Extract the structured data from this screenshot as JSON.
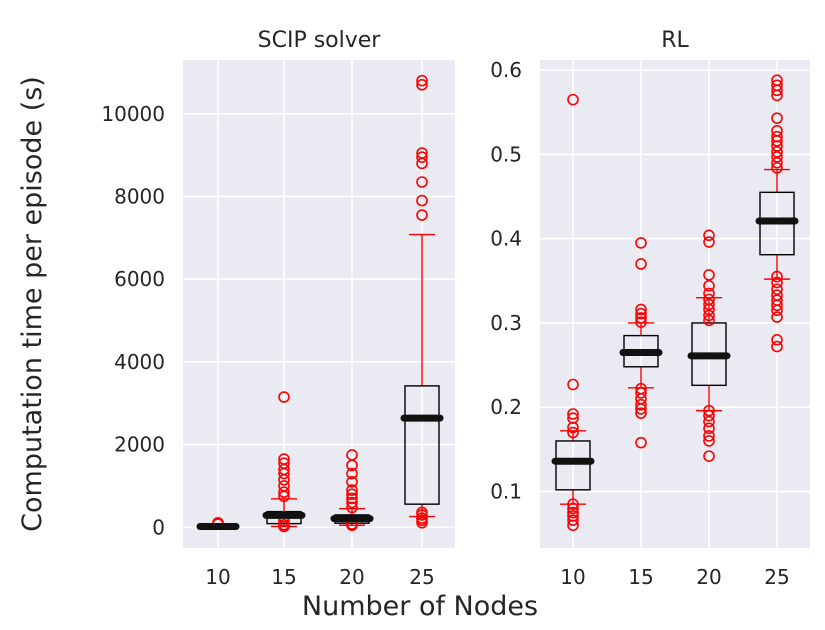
{
  "xlabel": "Number of Nodes",
  "ylabel": "Computation time per episode (s)",
  "colors": {
    "background": "#eaeaf2",
    "box": "#000000",
    "median": "#111111",
    "whisker": "#ff0000",
    "flier": "#ff0000"
  },
  "chart_data": [
    {
      "type": "box",
      "title": "SCIP solver",
      "categories": [
        "10",
        "15",
        "20",
        "25"
      ],
      "ylim": [
        -500,
        11300
      ],
      "yticks": [
        0,
        2000,
        4000,
        6000,
        8000,
        10000
      ],
      "grid": true,
      "boxes": [
        {
          "category": "10",
          "q1": 0,
          "median": 20,
          "q3": 40,
          "whisker_low": 0,
          "whisker_high": 70,
          "fliers": [
            80,
            100,
            110
          ]
        },
        {
          "category": "15",
          "q1": 90,
          "median": 290,
          "q3": 380,
          "whisker_low": 20,
          "whisker_high": 690,
          "fliers": [
            20,
            60,
            150,
            250,
            750,
            850,
            1000,
            1150,
            1300,
            1400,
            1550,
            1650,
            3150
          ]
        },
        {
          "category": "20",
          "q1": 100,
          "median": 210,
          "q3": 300,
          "whisker_low": 50,
          "whisker_high": 450,
          "fliers": [
            50,
            80,
            480,
            600,
            700,
            800,
            900,
            1100,
            1300,
            1500,
            1750
          ]
        },
        {
          "category": "25",
          "q1": 560,
          "median": 2640,
          "q3": 3420,
          "whisker_low": 260,
          "whisker_high": 7080,
          "fliers": [
            110,
            170,
            220,
            300,
            360,
            7550,
            7900,
            8350,
            8800,
            8950,
            9050,
            10700,
            10800
          ]
        }
      ]
    },
    {
      "type": "box",
      "title": "RL",
      "categories": [
        "10",
        "15",
        "20",
        "25"
      ],
      "ylim": [
        0.033,
        0.612
      ],
      "yticks": [
        0.1,
        0.2,
        0.3,
        0.4,
        0.5,
        0.6
      ],
      "ytick_labels": [
        "0.1",
        "0.2",
        "0.3",
        "0.4",
        "0.5",
        "0.6"
      ],
      "grid": true,
      "boxes": [
        {
          "category": "10",
          "q1": 0.102,
          "median": 0.136,
          "q3": 0.16,
          "whisker_low": 0.085,
          "whisker_high": 0.172,
          "fliers": [
            0.06,
            0.066,
            0.071,
            0.075,
            0.08,
            0.085,
            0.17,
            0.176,
            0.187,
            0.192,
            0.227,
            0.565
          ]
        },
        {
          "category": "15",
          "q1": 0.248,
          "median": 0.265,
          "q3": 0.285,
          "whisker_low": 0.223,
          "whisker_high": 0.3,
          "fliers": [
            0.158,
            0.193,
            0.198,
            0.203,
            0.21,
            0.217,
            0.222,
            0.301,
            0.306,
            0.311,
            0.316,
            0.37,
            0.395
          ]
        },
        {
          "category": "20",
          "q1": 0.226,
          "median": 0.261,
          "q3": 0.3,
          "whisker_low": 0.196,
          "whisker_high": 0.33,
          "fliers": [
            0.142,
            0.16,
            0.166,
            0.175,
            0.183,
            0.19,
            0.196,
            0.303,
            0.309,
            0.316,
            0.322,
            0.328,
            0.335,
            0.344,
            0.357,
            0.396,
            0.404
          ]
        },
        {
          "category": "25",
          "q1": 0.381,
          "median": 0.421,
          "q3": 0.455,
          "whisker_low": 0.352,
          "whisker_high": 0.482,
          "fliers": [
            0.272,
            0.28,
            0.307,
            0.315,
            0.321,
            0.327,
            0.333,
            0.34,
            0.348,
            0.355,
            0.484,
            0.49,
            0.497,
            0.503,
            0.51,
            0.516,
            0.521,
            0.528,
            0.543,
            0.57,
            0.576,
            0.582,
            0.588
          ]
        }
      ]
    }
  ]
}
